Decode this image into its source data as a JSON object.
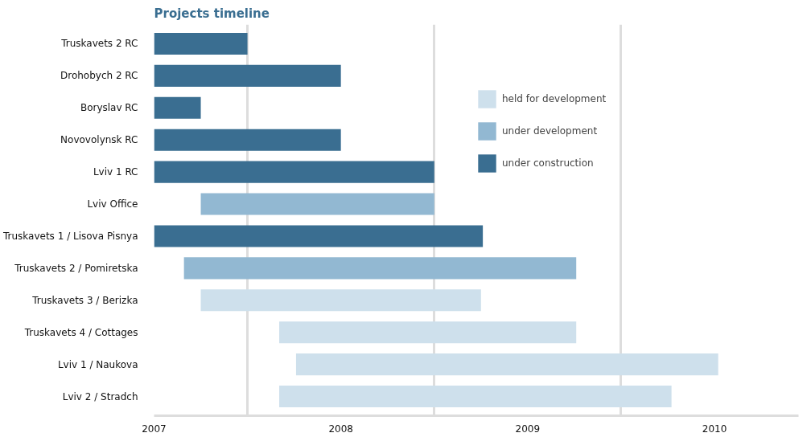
{
  "chart_data": {
    "type": "bar",
    "orientation": "horizontal",
    "title": "Projects timeline",
    "categories": [
      "Truskavets 2 RC",
      "Drohobych 2 RC",
      "Boryslav RC",
      "Novovolynsk RC",
      "Lviv 1 RC",
      "Lviv Office",
      "Truskavets 1 / Lisova Pisnya",
      "Truskavets 2 / Pomiretska",
      "Truskavets 3 / Berizka",
      "Truskavets 4 / Cottages",
      "Lviv 1 / Naukova",
      "Lviv 2 / Stradch"
    ],
    "series": [
      {
        "name": "held for development",
        "color": "#cee0ec",
        "values": [
          null,
          null,
          null,
          null,
          null,
          null,
          null,
          null,
          1.5,
          1.59,
          2.26,
          2.1
        ],
        "base": [
          null,
          null,
          null,
          null,
          null,
          null,
          null,
          null,
          2007.25,
          2007.67,
          2007.76,
          2007.67
        ]
      },
      {
        "name": "under development",
        "color": "#92b8d2",
        "values": [
          null,
          null,
          null,
          null,
          null,
          1.25,
          null,
          2.1,
          null,
          null,
          null,
          null
        ],
        "base": [
          null,
          null,
          null,
          null,
          null,
          2007.25,
          null,
          2007.16,
          null,
          null,
          null,
          null
        ]
      },
      {
        "name": "under construction",
        "color": "#3a6e91",
        "values": [
          0.5,
          1.0,
          0.25,
          1.0,
          1.5,
          null,
          1.76,
          null,
          null,
          null,
          null,
          null
        ],
        "base": [
          2007.0,
          2007.0,
          2007.0,
          2007.0,
          2007.0,
          null,
          2007.0,
          null,
          null,
          null,
          null,
          null
        ]
      }
    ],
    "xlim": [
      2007,
      2010.45
    ],
    "xticks": [
      2007,
      {
        "value": 2007.5,
        "label": null
      },
      2008,
      {
        "value": 2008.5,
        "label": null
      },
      2009,
      {
        "value": 2009.5,
        "label": null
      },
      2010
    ],
    "grid": "x",
    "legend": "top right"
  }
}
